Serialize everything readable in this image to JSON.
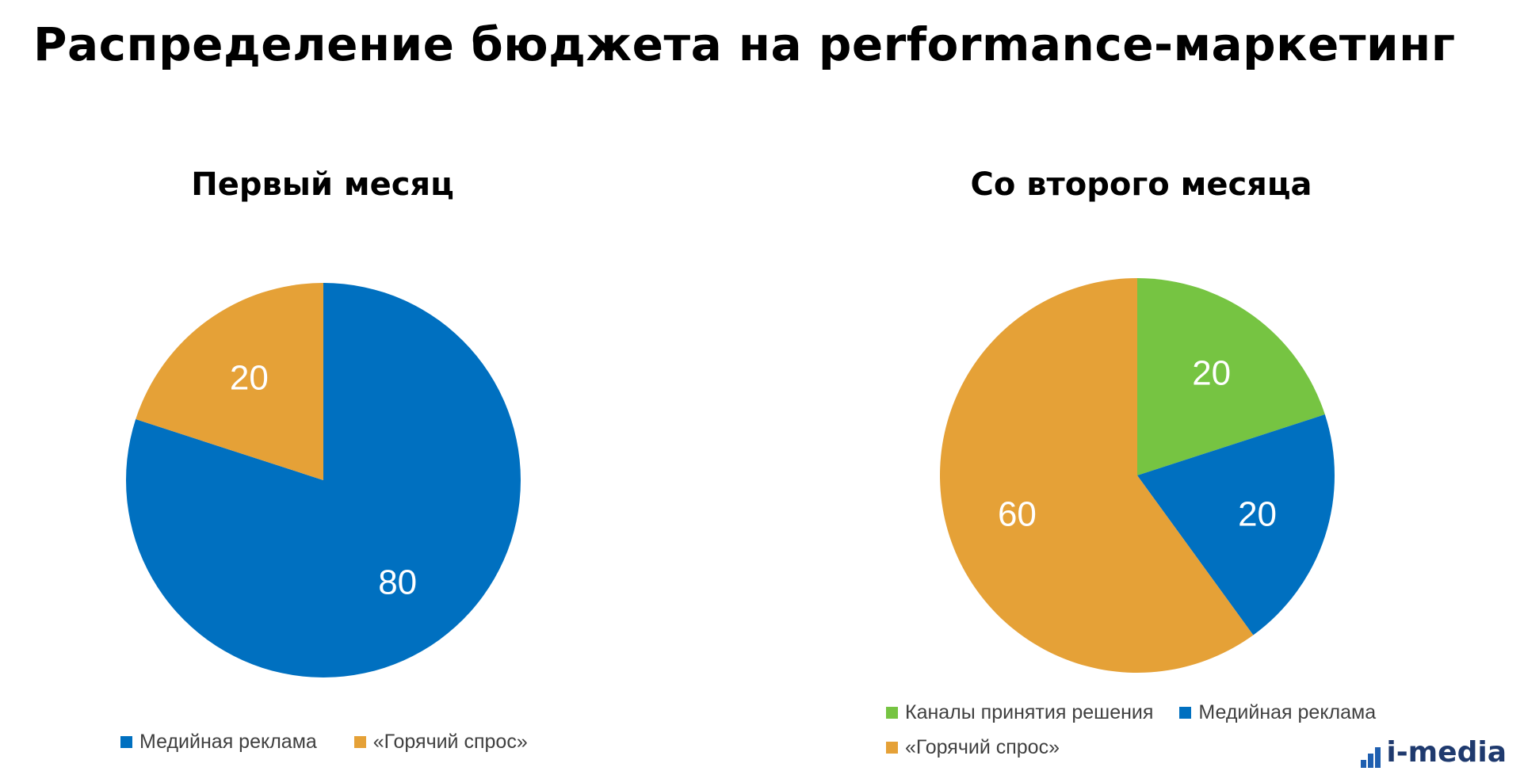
{
  "title": "Распределение бюджета на performance-маркетинг",
  "chart_data": [
    {
      "type": "pie",
      "title": "Первый месяц",
      "slices": [
        {
          "label": "Медийная реклама",
          "value": 80,
          "color": "#0070C0"
        },
        {
          "label": "«Горячий спрос»",
          "value": 20,
          "color": "#E5A137"
        }
      ],
      "data_labels": true,
      "legend_position": "bottom"
    },
    {
      "type": "pie",
      "title": "Со второго месяца",
      "slices": [
        {
          "label": "Каналы принятия решения",
          "value": 20,
          "color": "#76C442"
        },
        {
          "label": "Медийная реклама",
          "value": 20,
          "color": "#0070C0"
        },
        {
          "label": "«Горячий спрос»",
          "value": 60,
          "color": "#E5A137"
        }
      ],
      "data_labels": true,
      "legend_position": "bottom"
    }
  ],
  "logo": {
    "text": "i-media"
  }
}
